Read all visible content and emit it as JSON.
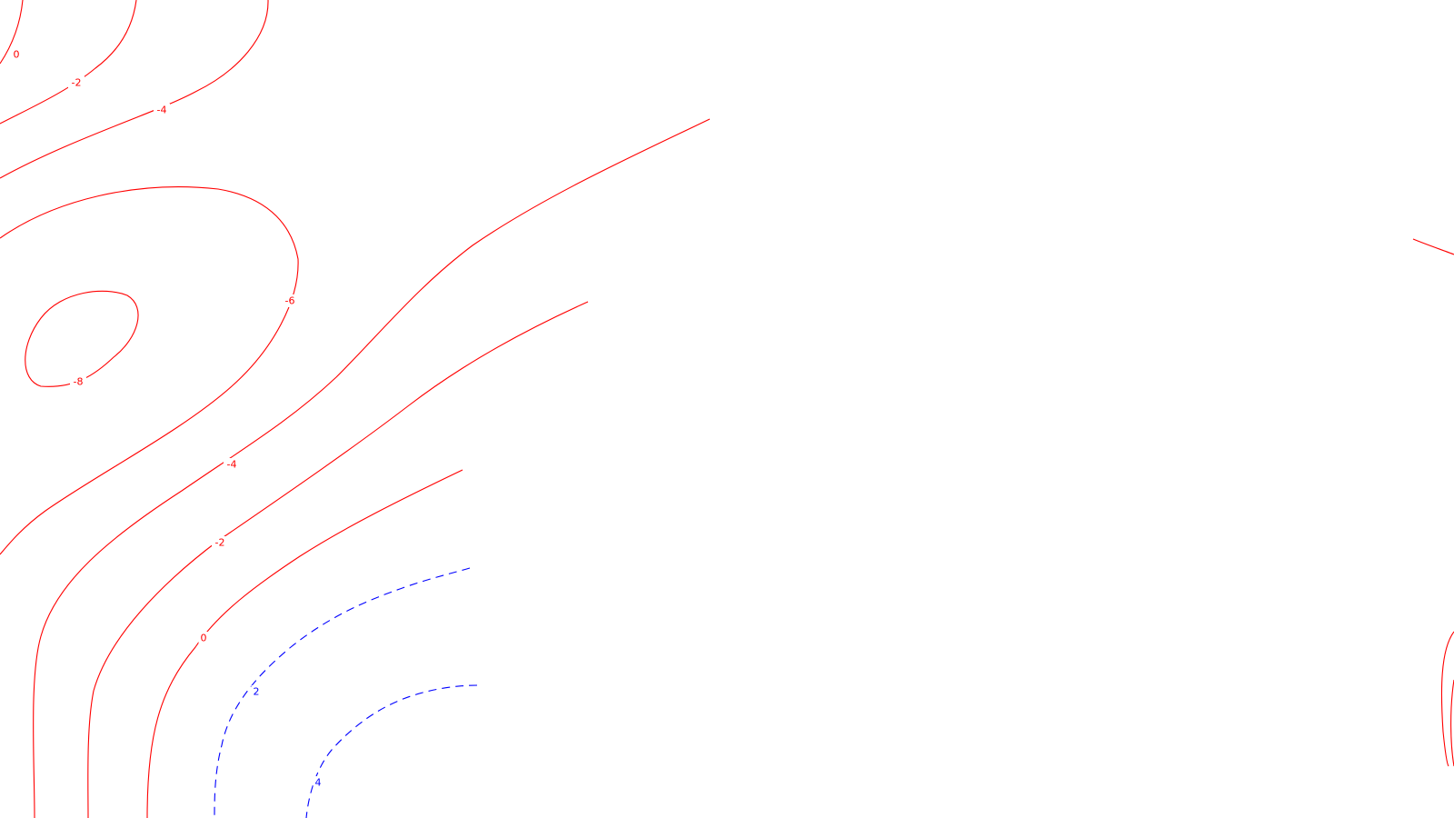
{
  "map": {
    "colors": {
      "negative": "#ff0000",
      "positive": "#0000ff",
      "background": "#ffffff"
    },
    "contours": [
      {
        "id": "neg-upper-0",
        "value": 0,
        "sign": "negative",
        "label": "0"
      },
      {
        "id": "neg-upper-2",
        "value": -2,
        "sign": "negative",
        "label": "-2"
      },
      {
        "id": "neg-upper-4",
        "value": -4,
        "sign": "negative",
        "label": "-4"
      },
      {
        "id": "neg-6",
        "value": -6,
        "sign": "negative",
        "label": "-6"
      },
      {
        "id": "neg-8",
        "value": -8,
        "sign": "negative",
        "label": "-8"
      },
      {
        "id": "neg-lower-4",
        "value": -4,
        "sign": "negative",
        "label": "-4"
      },
      {
        "id": "neg-lower-2",
        "value": -2,
        "sign": "negative",
        "label": "-2"
      },
      {
        "id": "neg-lower-0",
        "value": 0,
        "sign": "negative",
        "label": "0"
      },
      {
        "id": "pos-2",
        "value": 2,
        "sign": "positive",
        "label": "2"
      },
      {
        "id": "pos-4",
        "value": 4,
        "sign": "positive",
        "label": "4"
      },
      {
        "id": "neg-right-top",
        "value": null,
        "sign": "negative",
        "label": ""
      },
      {
        "id": "neg-right-bottom",
        "value": null,
        "sign": "negative",
        "label": ""
      }
    ]
  }
}
